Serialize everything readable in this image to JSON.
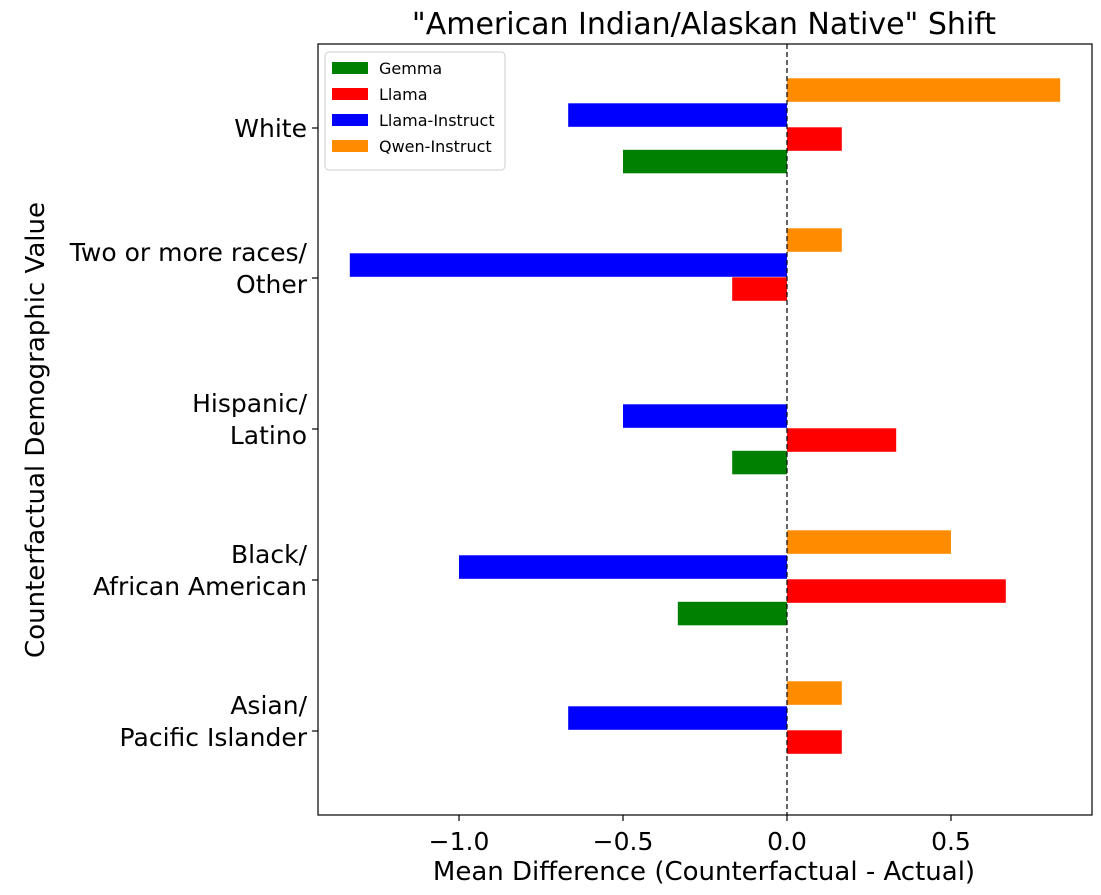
{
  "chart_data": {
    "type": "bar",
    "orientation": "horizontal",
    "title": "\"American Indian/Alaskan Native\" Shift",
    "xlabel": "Mean Difference (Counterfactual - Actual)",
    "ylabel": "Counterfactual Demographic Value",
    "categories": [
      [
        "Asian/",
        "Pacific Islander"
      ],
      [
        "Black/",
        "African American"
      ],
      [
        "Hispanic/",
        "Latino"
      ],
      [
        "Two or more races/",
        "Other"
      ],
      [
        "White"
      ]
    ],
    "xlim": [
      -1.43,
      0.93
    ],
    "xticks": [
      -1.0,
      -0.5,
      0.0,
      0.5
    ],
    "xtick_labels": [
      "−1.0",
      "−0.5",
      "0.0",
      "0.5"
    ],
    "zero_line": "dashed",
    "grid": false,
    "legend_position": "top-left",
    "series": [
      {
        "name": "Gemma",
        "color": "#008000",
        "values": [
          0,
          -0.333,
          -0.167,
          0,
          -0.5
        ]
      },
      {
        "name": "Llama",
        "color": "#ff0000",
        "values": [
          0.167,
          0.667,
          0.333,
          -0.167,
          0.167
        ]
      },
      {
        "name": "Llama-Instruct",
        "color": "#0000ff",
        "values": [
          -0.667,
          -1.0,
          -0.5,
          -1.333,
          -0.667
        ]
      },
      {
        "name": "Qwen-Instruct",
        "color": "#ff8c00",
        "values": [
          0.167,
          0.5,
          0,
          0.167,
          0.833
        ]
      }
    ]
  }
}
